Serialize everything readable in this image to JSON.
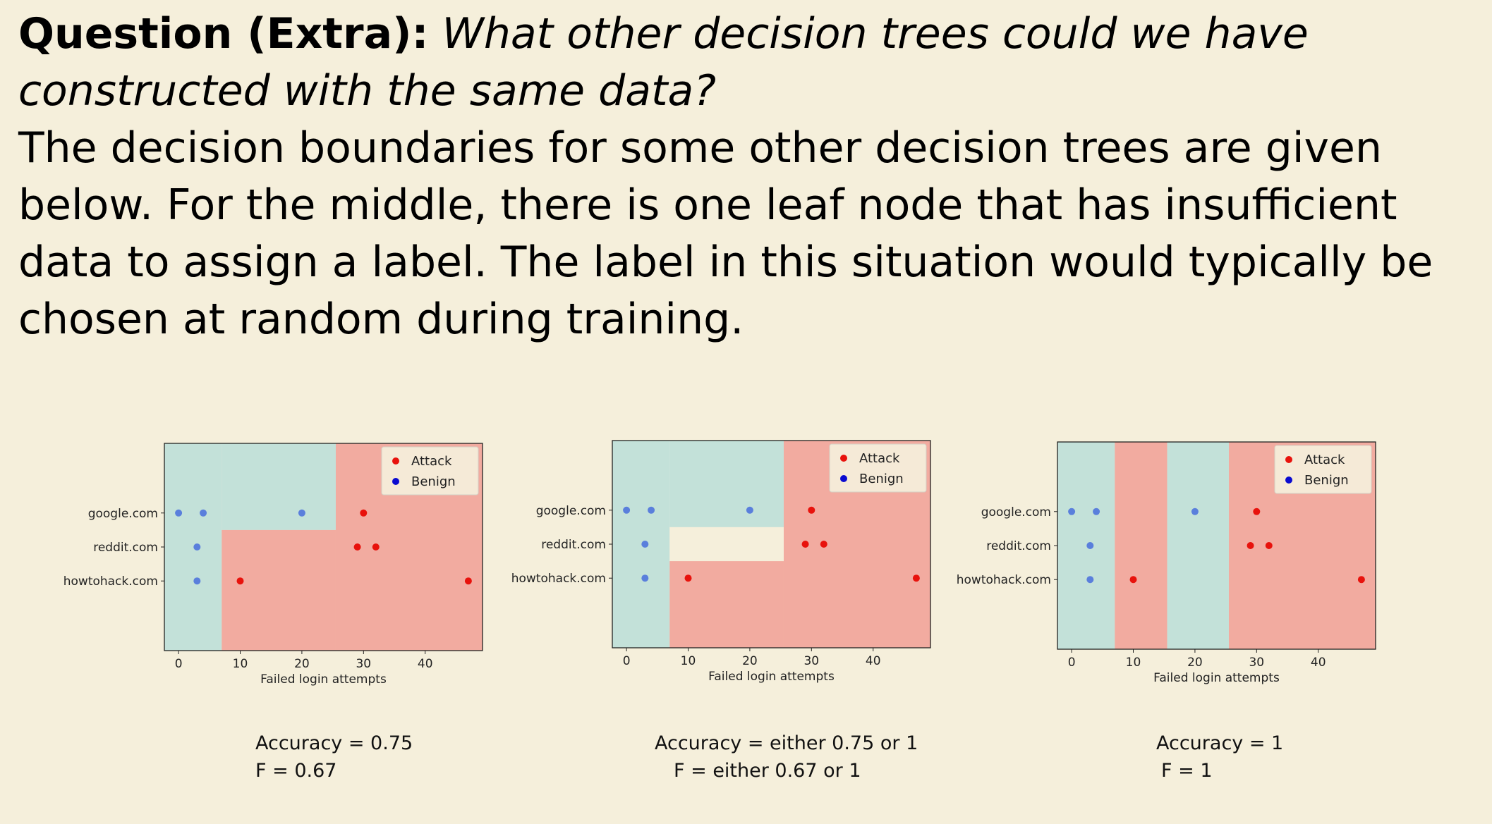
{
  "question": {
    "label": "Question (Extra):",
    "text": "What other decision trees could we have constructed with the same data?"
  },
  "body_text": "The decision boundaries for some other decision trees are given below. For the middle, there is one leaf node that has insufficient data to assign a label. The label in this situation would typically be chosen at random during training.",
  "colors": {
    "attack": "#e8120c",
    "benign": "#0a0ad0",
    "benign_point": "#5a7fdc",
    "attack_region": "#f2aba0",
    "benign_region": "#c3e1d9",
    "unlabeled_region": "#f5efdb"
  },
  "chart_data": [
    {
      "type": "scatter",
      "title": "",
      "xlabel": "Failed login attempts",
      "ylabel": "",
      "x_ticks": [
        0,
        10,
        20,
        30,
        40
      ],
      "xlim": [
        -2.3,
        49.3
      ],
      "y_categories": [
        "google.com",
        "reddit.com",
        "howtohack.com"
      ],
      "legend": {
        "position": "top-right",
        "entries": [
          "Attack",
          "Benign"
        ]
      },
      "series": [
        {
          "name": "Attack",
          "points": [
            {
              "x": 30,
              "y": "google.com"
            },
            {
              "x": 29,
              "y": "reddit.com"
            },
            {
              "x": 32,
              "y": "reddit.com"
            },
            {
              "x": 10,
              "y": "howtohack.com"
            },
            {
              "x": 47,
              "y": "howtohack.com"
            }
          ]
        },
        {
          "name": "Benign",
          "points": [
            {
              "x": 0,
              "y": "google.com"
            },
            {
              "x": 4,
              "y": "google.com"
            },
            {
              "x": 20,
              "y": "google.com"
            },
            {
              "x": 3,
              "y": "reddit.com"
            },
            {
              "x": 3,
              "y": "howtohack.com"
            }
          ]
        }
      ],
      "decision_regions": [
        {
          "label": "Benign",
          "x_range": [
            -2.3,
            7
          ],
          "y_range": [
            "all"
          ]
        },
        {
          "label": "Benign",
          "x_range": [
            7,
            25.5
          ],
          "y_range": [
            "google.com"
          ]
        },
        {
          "label": "Attack",
          "x_range": [
            7,
            25.5
          ],
          "y_range": [
            "reddit.com",
            "howtohack.com"
          ]
        },
        {
          "label": "Attack",
          "x_range": [
            25.5,
            49.3
          ],
          "y_range": [
            "all"
          ]
        }
      ],
      "caption": {
        "line1": "Accuracy = 0.75",
        "line2": "F = 0.67"
      }
    },
    {
      "type": "scatter",
      "title": "",
      "xlabel": "Failed login attempts",
      "ylabel": "",
      "x_ticks": [
        0,
        10,
        20,
        30,
        40
      ],
      "xlim": [
        -2.3,
        49.3
      ],
      "y_categories": [
        "google.com",
        "reddit.com",
        "howtohack.com"
      ],
      "legend": {
        "position": "top-right",
        "entries": [
          "Attack",
          "Benign"
        ]
      },
      "series": [
        {
          "name": "Attack",
          "points": [
            {
              "x": 30,
              "y": "google.com"
            },
            {
              "x": 29,
              "y": "reddit.com"
            },
            {
              "x": 32,
              "y": "reddit.com"
            },
            {
              "x": 10,
              "y": "howtohack.com"
            },
            {
              "x": 47,
              "y": "howtohack.com"
            }
          ]
        },
        {
          "name": "Benign",
          "points": [
            {
              "x": 0,
              "y": "google.com"
            },
            {
              "x": 4,
              "y": "google.com"
            },
            {
              "x": 20,
              "y": "google.com"
            },
            {
              "x": 3,
              "y": "reddit.com"
            },
            {
              "x": 3,
              "y": "howtohack.com"
            }
          ]
        }
      ],
      "decision_regions": [
        {
          "label": "Benign",
          "x_range": [
            -2.3,
            7
          ],
          "y_range": [
            "all"
          ]
        },
        {
          "label": "Benign",
          "x_range": [
            7,
            25.5
          ],
          "y_range": [
            "google.com"
          ]
        },
        {
          "label": "Unassigned",
          "x_range": [
            7,
            25.5
          ],
          "y_range": [
            "reddit.com"
          ]
        },
        {
          "label": "Attack",
          "x_range": [
            7,
            25.5
          ],
          "y_range": [
            "howtohack.com"
          ]
        },
        {
          "label": "Attack",
          "x_range": [
            25.5,
            49.3
          ],
          "y_range": [
            "all"
          ]
        }
      ],
      "caption": {
        "line1": "Accuracy = either 0.75 or 1",
        "line2": "F = either 0.67 or 1"
      }
    },
    {
      "type": "scatter",
      "title": "",
      "xlabel": "Failed login attempts",
      "ylabel": "",
      "x_ticks": [
        0,
        10,
        20,
        30,
        40
      ],
      "xlim": [
        -2.3,
        49.3
      ],
      "y_categories": [
        "google.com",
        "reddit.com",
        "howtohack.com"
      ],
      "legend": {
        "position": "top-right",
        "entries": [
          "Attack",
          "Benign"
        ]
      },
      "series": [
        {
          "name": "Attack",
          "points": [
            {
              "x": 30,
              "y": "google.com"
            },
            {
              "x": 29,
              "y": "reddit.com"
            },
            {
              "x": 32,
              "y": "reddit.com"
            },
            {
              "x": 10,
              "y": "howtohack.com"
            },
            {
              "x": 47,
              "y": "howtohack.com"
            }
          ]
        },
        {
          "name": "Benign",
          "points": [
            {
              "x": 0,
              "y": "google.com"
            },
            {
              "x": 4,
              "y": "google.com"
            },
            {
              "x": 20,
              "y": "google.com"
            },
            {
              "x": 3,
              "y": "reddit.com"
            },
            {
              "x": 3,
              "y": "howtohack.com"
            }
          ]
        }
      ],
      "decision_regions": [
        {
          "label": "Benign",
          "x_range": [
            -2.3,
            7
          ],
          "y_range": [
            "all"
          ]
        },
        {
          "label": "Attack",
          "x_range": [
            7,
            15.5
          ],
          "y_range": [
            "all"
          ]
        },
        {
          "label": "Benign",
          "x_range": [
            15.5,
            25.5
          ],
          "y_range": [
            "all"
          ]
        },
        {
          "label": "Attack",
          "x_range": [
            25.5,
            49.3
          ],
          "y_range": [
            "all"
          ]
        }
      ],
      "caption": {
        "line1": "Accuracy = 1",
        "line2": "F = 1"
      }
    }
  ]
}
